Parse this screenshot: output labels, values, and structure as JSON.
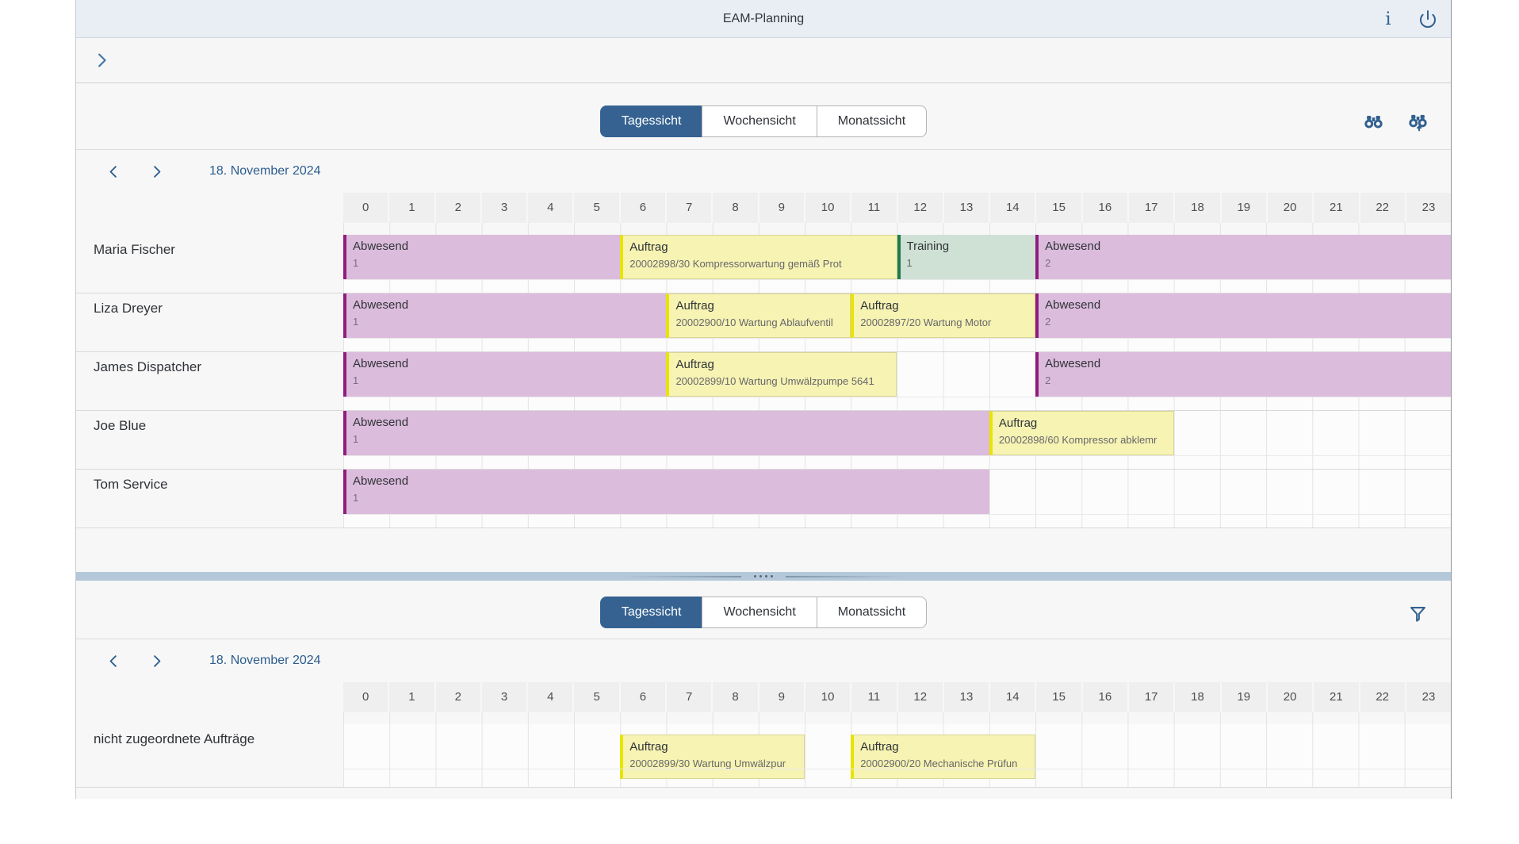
{
  "shell": {
    "title": "EAM-Planning",
    "icons": [
      "info",
      "power"
    ]
  },
  "subheader": {
    "expand_icon": "chevron-right"
  },
  "colors": {
    "accent": "#31608f",
    "shell_bg": "#e9eef4",
    "tab_selected_bg": "#356291",
    "splitter_bg": "#b4c8da",
    "absence_bg": "#dcbcdc",
    "absence_border": "#8e1d7f",
    "order_bg": "#f6f3b3",
    "order_border": "#e8e400",
    "training_bg": "#cfe0d5",
    "training_border": "#1f7a50"
  },
  "panels": [
    {
      "id": "resource-planning",
      "tabs": [
        {
          "label": "Tagessicht",
          "selected": true
        },
        {
          "label": "Wochensicht",
          "selected": false
        },
        {
          "label": "Monatssicht",
          "selected": false
        }
      ],
      "toolbar_icons": [
        "find",
        "find-next"
      ],
      "date_label": "18. November 2024",
      "hours": [
        "0",
        "1",
        "2",
        "3",
        "4",
        "5",
        "6",
        "7",
        "8",
        "9",
        "10",
        "11",
        "12",
        "13",
        "14",
        "15",
        "16",
        "17",
        "18",
        "19",
        "20",
        "21",
        "22",
        "23"
      ],
      "rows": [
        {
          "label": "Maria Fischer",
          "bars": [
            {
              "type": "absence",
              "title": "Abwesend",
              "subtitle": "1",
              "start": 0,
              "end": 6
            },
            {
              "type": "order",
              "title": "Auftrag",
              "subtitle": "20002898/30 Kompressorwartung gemäß Prot",
              "start": 6,
              "end": 12
            },
            {
              "type": "training",
              "title": "Training",
              "subtitle": "1",
              "start": 12,
              "end": 15
            },
            {
              "type": "absence",
              "title": "Abwesend",
              "subtitle": "2",
              "start": 15,
              "end": 24
            }
          ]
        },
        {
          "label": "Liza Dreyer",
          "bars": [
            {
              "type": "absence",
              "title": "Abwesend",
              "subtitle": "1",
              "start": 0,
              "end": 7
            },
            {
              "type": "order",
              "title": "Auftrag",
              "subtitle": "20002900/10 Wartung Ablaufventil",
              "start": 7,
              "end": 11
            },
            {
              "type": "order",
              "title": "Auftrag",
              "subtitle": "20002897/20 Wartung Motor",
              "start": 11,
              "end": 15
            },
            {
              "type": "absence",
              "title": "Abwesend",
              "subtitle": "2",
              "start": 15,
              "end": 24
            }
          ]
        },
        {
          "label": "James Dispatcher",
          "bars": [
            {
              "type": "absence",
              "title": "Abwesend",
              "subtitle": "1",
              "start": 0,
              "end": 7
            },
            {
              "type": "order",
              "title": "Auftrag",
              "subtitle": "20002899/10 Wartung Umwälzpumpe 5641",
              "start": 7,
              "end": 12
            },
            {
              "type": "absence",
              "title": "Abwesend",
              "subtitle": "2",
              "start": 15,
              "end": 24
            }
          ]
        },
        {
          "label": "Joe Blue",
          "bars": [
            {
              "type": "absence",
              "title": "Abwesend",
              "subtitle": "1",
              "start": 0,
              "end": 14
            },
            {
              "type": "order",
              "title": "Auftrag",
              "subtitle": "20002898/60 Kompressor abklemr",
              "start": 14,
              "end": 18
            }
          ]
        },
        {
          "label": "Tom Service",
          "bars": [
            {
              "type": "absence",
              "title": "Abwesend",
              "subtitle": "1",
              "start": 0,
              "end": 14
            }
          ]
        }
      ]
    },
    {
      "id": "unassigned-orders",
      "tabs": [
        {
          "label": "Tagessicht",
          "selected": true
        },
        {
          "label": "Wochensicht",
          "selected": false
        },
        {
          "label": "Monatssicht",
          "selected": false
        }
      ],
      "toolbar_icons": [
        "filter"
      ],
      "date_label": "18. November 2024",
      "hours": [
        "0",
        "1",
        "2",
        "3",
        "4",
        "5",
        "6",
        "7",
        "8",
        "9",
        "10",
        "11",
        "12",
        "13",
        "14",
        "15",
        "16",
        "17",
        "18",
        "19",
        "20",
        "21",
        "22",
        "23"
      ],
      "rows": [
        {
          "label": "nicht zugeordnete Aufträge",
          "bars": [
            {
              "type": "order",
              "title": "Auftrag",
              "subtitle": "20002899/30 Wartung Umwälzpur",
              "start": 6,
              "end": 10
            },
            {
              "type": "order",
              "title": "Auftrag",
              "subtitle": "20002900/20 Mechanische Prüfun",
              "start": 11,
              "end": 15
            }
          ]
        }
      ]
    }
  ]
}
